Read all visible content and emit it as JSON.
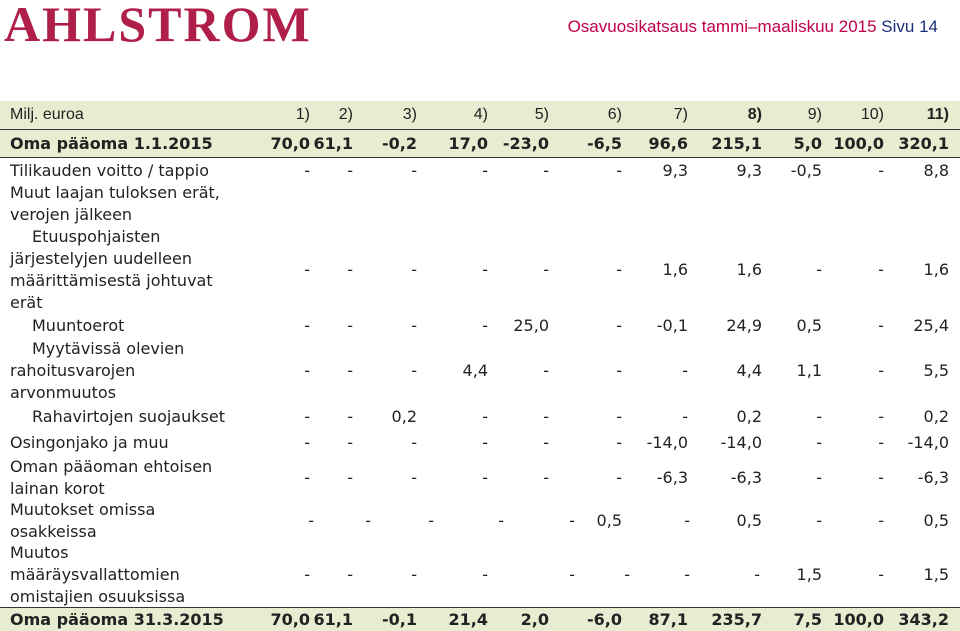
{
  "header": {
    "logo_text": "AHLSTROM",
    "report_title": "Osavuosikatsaus tammi–maaliskuu 2015",
    "page_label": "Sivu 14",
    "brand_color": "#b01e4a",
    "band_color": "#e6edd0"
  },
  "table": {
    "unit_label": "Milj. euroa",
    "columns": [
      "1)",
      "2)",
      "3)",
      "4)",
      "5)",
      "6)",
      "7)",
      "8)",
      "9)",
      "10)",
      "11)"
    ],
    "rows": [
      {
        "label": "Oma pääoma 1.1.2015",
        "values": [
          "70,0",
          "61,1",
          "-0,2",
          "17,0",
          "-23,0",
          "-6,5",
          "96,6",
          "215,1",
          "5,0",
          "100,0",
          "320,1"
        ]
      },
      {
        "label": "Tilikauden voitto / tappio",
        "values": [
          "-",
          "-",
          "-",
          "-",
          "-",
          "-",
          "9,3",
          "9,3",
          "-0,5",
          "-",
          "8,8"
        ]
      },
      {
        "label_lines": [
          "Muut laajan tuloksen erät,",
          "verojen jälkeen"
        ]
      },
      {
        "label_lines": [
          "Etuuspohjaisten",
          "järjestelyjen uudelleen",
          "määrittämisestä johtuvat",
          "erät"
        ],
        "values": [
          "-",
          "-",
          "-",
          "-",
          "-",
          "-",
          "1,6",
          "1,6",
          "-",
          "-",
          "1,6"
        ]
      },
      {
        "label": "Muuntoerot",
        "values": [
          "-",
          "-",
          "-",
          "-",
          "25,0",
          "-",
          "-0,1",
          "24,9",
          "0,5",
          "-",
          "25,4"
        ]
      },
      {
        "label_lines": [
          "Myytävissä olevien",
          "rahoitusvarojen",
          "arvonmuutos"
        ],
        "values": [
          "-",
          "-",
          "-",
          "4,4",
          "-",
          "-",
          "-",
          "4,4",
          "1,1",
          "-",
          "5,5"
        ]
      },
      {
        "label": "Rahavirtojen suojaukset",
        "values": [
          "-",
          "-",
          "0,2",
          "-",
          "-",
          "-",
          "-",
          "0,2",
          "-",
          "-",
          "0,2"
        ]
      },
      {
        "label": "Osingonjako ja muu",
        "values": [
          "-",
          "-",
          "-",
          "-",
          "-",
          "-",
          "-14,0",
          "-14,0",
          "-",
          "-",
          "-14,0"
        ]
      },
      {
        "label_lines": [
          "Oman pääoman ehtoisen",
          "lainan korot"
        ],
        "values": [
          "-",
          "-",
          "-",
          "-",
          "-",
          "-",
          "-6,3",
          "-6,3",
          "-",
          "-",
          "-6,3"
        ]
      },
      {
        "label_lines": [
          "Muutokset omissa",
          "osakkeissa"
        ],
        "values": [
          "-",
          "-",
          "-",
          "-",
          "-",
          "0,5",
          "-",
          "0,5",
          "-",
          "-",
          "0,5"
        ]
      },
      {
        "label_lines": [
          "Muutos",
          "määräysvallattomien",
          "omistajien osuuksissa"
        ],
        "values": [
          "-",
          "-",
          "-",
          "-",
          "-",
          "-",
          "-",
          "-",
          "1,5",
          "-",
          "1,5"
        ]
      },
      {
        "label": "Oma pääoma 31.3.2015",
        "values": [
          "70,0",
          "61,1",
          "-0,1",
          "21,4",
          "2,0",
          "-6,0",
          "87,1",
          "235,7",
          "7,5",
          "100,0",
          "343,2"
        ]
      }
    ]
  }
}
